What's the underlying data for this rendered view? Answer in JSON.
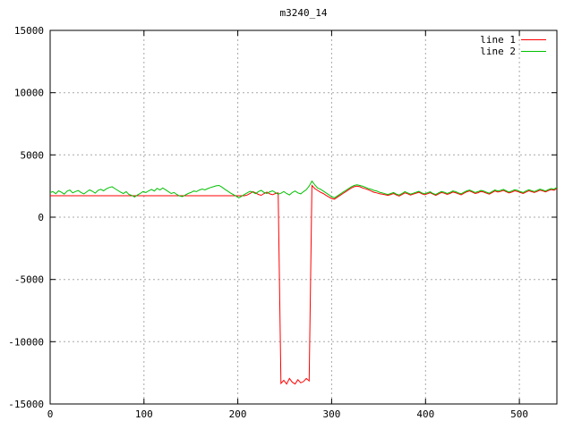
{
  "chart_data": {
    "type": "line",
    "title": "m3240_14",
    "xlabel": "",
    "ylabel": "",
    "xlim": [
      0,
      540
    ],
    "ylim": [
      -15000,
      15000
    ],
    "xticks": [
      0,
      100,
      200,
      300,
      400,
      500
    ],
    "yticks": [
      -15000,
      -10000,
      -5000,
      0,
      5000,
      10000,
      15000
    ],
    "grid": true,
    "legend_position": "top-right-inside",
    "background_color": "#ffffff",
    "grid_color": "#a8a8a8",
    "border_color": "#000000",
    "x_start": 0,
    "x_step": 3,
    "series": [
      {
        "name": "line 1",
        "color": "#ff0000",
        "values": [
          1720,
          1720,
          1720,
          1720,
          1720,
          1720,
          1720,
          1720,
          1720,
          1720,
          1720,
          1720,
          1720,
          1720,
          1720,
          1720,
          1720,
          1720,
          1720,
          1720,
          1720,
          1720,
          1720,
          1720,
          1720,
          1720,
          1720,
          1720,
          1720,
          1720,
          1720,
          1720,
          1720,
          1720,
          1720,
          1720,
          1720,
          1720,
          1720,
          1720,
          1720,
          1720,
          1720,
          1720,
          1720,
          1720,
          1720,
          1720,
          1720,
          1720,
          1720,
          1720,
          1720,
          1720,
          1720,
          1720,
          1720,
          1720,
          1720,
          1720,
          1720,
          1720,
          1720,
          1720,
          1720,
          1720,
          1720,
          1720,
          1720,
          1720,
          1780,
          1900,
          2050,
          1950,
          1820,
          1760,
          1900,
          2020,
          1870,
          1800,
          1900,
          1950,
          -13350,
          -13100,
          -13400,
          -12950,
          -13250,
          -13400,
          -13050,
          -13300,
          -13200,
          -12950,
          -13150,
          2550,
          2300,
          2150,
          2000,
          1900,
          1750,
          1620,
          1500,
          1450,
          1600,
          1750,
          1900,
          2050,
          2200,
          2350,
          2450,
          2500,
          2450,
          2350,
          2280,
          2200,
          2100,
          2000,
          1950,
          1880,
          1850,
          1800,
          1750,
          1820,
          1900,
          1780,
          1700,
          1820,
          1950,
          1880,
          1780,
          1850,
          1920,
          2000,
          1880,
          1800,
          1880,
          1960,
          1850,
          1750,
          1870,
          1980,
          1920,
          1830,
          1900,
          2020,
          1970,
          1880,
          1800,
          1920,
          2040,
          2100,
          2000,
          1900,
          1970,
          2070,
          2020,
          1920,
          1850,
          1980,
          2100,
          2020,
          2070,
          2150,
          2040,
          1950,
          2020,
          2120,
          2070,
          1980,
          1900,
          2020,
          2120,
          2050,
          1980,
          2070,
          2170,
          2100,
          2030,
          2140,
          2220,
          2170,
          2320
        ]
      },
      {
        "name": "line 2",
        "color": "#00c000",
        "values": [
          1980,
          2050,
          1890,
          2120,
          2000,
          1850,
          2090,
          2180,
          1950,
          2060,
          2140,
          1980,
          1870,
          2040,
          2190,
          2080,
          1930,
          2150,
          2240,
          2120,
          2280,
          2380,
          2450,
          2300,
          2150,
          2020,
          1900,
          2050,
          1820,
          1750,
          1620,
          1780,
          1900,
          2060,
          1980,
          2120,
          2230,
          2100,
          2320,
          2190,
          2350,
          2200,
          2050,
          1900,
          1980,
          1820,
          1700,
          1650,
          1780,
          1900,
          1980,
          2100,
          2050,
          2180,
          2260,
          2190,
          2300,
          2380,
          2450,
          2520,
          2550,
          2420,
          2250,
          2100,
          1950,
          1820,
          1700,
          1550,
          1680,
          1820,
          1950,
          2080,
          2010,
          1890,
          2060,
          2150,
          1980,
          1900,
          2040,
          2120,
          1980,
          1850,
          1920,
          2060,
          1900,
          1790,
          1980,
          2100,
          1950,
          1870,
          2050,
          2200,
          2500,
          2900,
          2600,
          2350,
          2250,
          2100,
          1950,
          1800,
          1650,
          1560,
          1700,
          1850,
          2000,
          2150,
          2300,
          2450,
          2550,
          2600,
          2550,
          2480,
          2400,
          2300,
          2250,
          2150,
          2100,
          2000,
          1950,
          1880,
          1820,
          1900,
          1980,
          1850,
          1780,
          1900,
          2050,
          1950,
          1850,
          1920,
          2000,
          2080,
          1950,
          1880,
          1960,
          2040,
          1900,
          1820,
          1950,
          2060,
          2000,
          1900,
          1980,
          2100,
          2050,
          1950,
          1880,
          2000,
          2120,
          2180,
          2080,
          1980,
          2050,
          2150,
          2100,
          2000,
          1920,
          2060,
          2180,
          2100,
          2150,
          2230,
          2120,
          2020,
          2100,
          2200,
          2150,
          2050,
          1980,
          2100,
          2200,
          2130,
          2050,
          2150,
          2250,
          2180,
          2100,
          2220,
          2300,
          2250,
          2400
        ]
      }
    ]
  }
}
